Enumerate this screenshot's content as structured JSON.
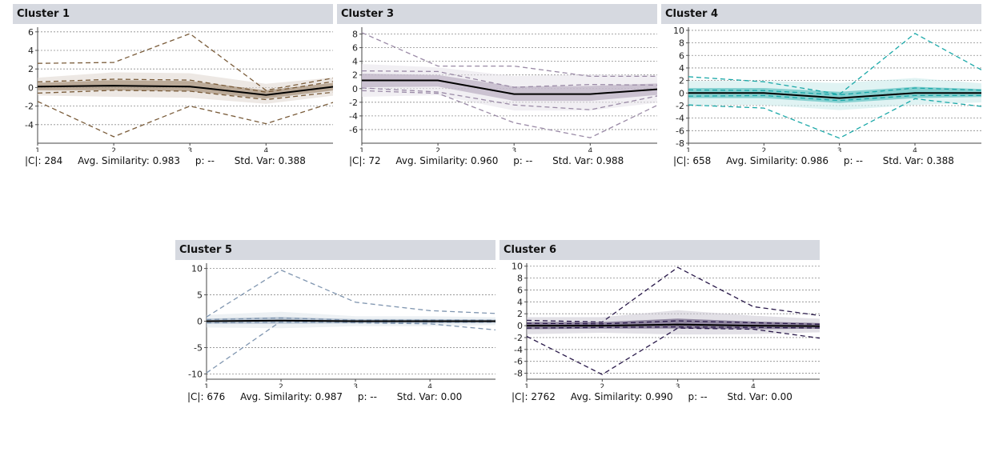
{
  "panels": [
    {
      "title": "Cluster 1",
      "stats": {
        "size": "|C|: 284",
        "similarity": "Avg. Similarity: 0.983",
        "p": "p: --",
        "std": "Std. Var: 0.388"
      },
      "chart_data": {
        "type": "line",
        "x": [
          1,
          2,
          3,
          4,
          5
        ],
        "x_ticks": [
          "1",
          "2",
          "3",
          "4"
        ],
        "y_ticks": [
          "6",
          "4",
          "2",
          "0",
          "-2",
          "-4"
        ],
        "ylim": [
          -6,
          6.5
        ],
        "color": "#7a5c3a",
        "mean": [
          0.1,
          0.2,
          0.1,
          -0.8,
          0.2
        ],
        "band": {
          "upper": [
            0.5,
            0.8,
            0.7,
            -0.3,
            0.6
          ],
          "lower": [
            -0.3,
            -0.3,
            -0.4,
            -1.2,
            -0.2
          ]
        },
        "dashed": [
          [
            2.6,
            2.7,
            5.8,
            -0.3,
            1.2
          ],
          [
            -1.5,
            -5.3,
            -2.0,
            -3.9,
            -1.3
          ],
          [
            0.6,
            0.9,
            0.8,
            -0.5,
            0.8
          ],
          [
            -0.6,
            -0.3,
            -0.4,
            -1.3,
            -0.4
          ]
        ],
        "grid": true
      }
    },
    {
      "title": "Cluster 3",
      "stats": {
        "size": "|C|: 72",
        "similarity": "Avg. Similarity: 0.960",
        "p": "p: --",
        "std": "Std. Var: 0.988"
      },
      "chart_data": {
        "type": "line",
        "x": [
          1,
          2,
          3,
          4,
          5
        ],
        "x_ticks": [
          "1",
          "2",
          "3",
          "4"
        ],
        "y_ticks": [
          "8",
          "6",
          "4",
          "2",
          "0",
          "-2",
          "-4",
          "-6"
        ],
        "ylim": [
          -8,
          9
        ],
        "color": "#9a8aa6",
        "mean": [
          1.2,
          1.2,
          -0.8,
          -0.8,
          0.0
        ],
        "band": {
          "upper": [
            2.2,
            2.0,
            0.3,
            0.4,
            0.8
          ],
          "lower": [
            0.2,
            0.3,
            -1.8,
            -1.8,
            -0.8
          ]
        },
        "dashed": [
          [
            8.2,
            3.3,
            3.3,
            1.8,
            1.8
          ],
          [
            -0.3,
            -0.7,
            -5.0,
            -7.2,
            -1.8
          ],
          [
            2.6,
            2.5,
            0.2,
            0.6,
            0.5
          ],
          [
            0.1,
            -0.5,
            -2.4,
            -3.1,
            -0.8
          ]
        ],
        "grid": true
      }
    },
    {
      "title": "Cluster 4",
      "stats": {
        "size": "|C|: 658",
        "similarity": "Avg. Similarity: 0.986",
        "p": "p: --",
        "std": "Std. Var: 0.388"
      },
      "chart_data": {
        "type": "line",
        "x": [
          1,
          2,
          3,
          4,
          5
        ],
        "x_ticks": [
          "1",
          "2",
          "3",
          "4"
        ],
        "y_ticks": [
          "10",
          "8",
          "6",
          "4",
          "2",
          "0",
          "-2",
          "-4",
          "-6",
          "-8"
        ],
        "ylim": [
          -8,
          10.5
        ],
        "color": "#1aa8a8",
        "mean": [
          0.0,
          0.0,
          -0.8,
          0.0,
          0.0
        ],
        "band": {
          "upper": [
            0.8,
            0.8,
            0.2,
            1.0,
            0.6
          ],
          "lower": [
            -0.8,
            -0.8,
            -1.6,
            -0.8,
            -0.6
          ]
        },
        "dashed": [
          [
            2.6,
            1.8,
            -0.2,
            9.5,
            2.9
          ],
          [
            -1.9,
            -2.4,
            -7.2,
            -0.9,
            -2.3
          ],
          [
            0.5,
            0.4,
            -0.3,
            0.8,
            0.4
          ],
          [
            -0.5,
            -0.4,
            -1.2,
            -0.4,
            -0.4
          ]
        ],
        "grid": true
      }
    },
    {
      "title": "Cluster 5",
      "stats": {
        "size": "|C|: 676",
        "similarity": "Avg. Similarity: 0.987",
        "p": "p: --",
        "std": "Std. Var: 0.00"
      },
      "chart_data": {
        "type": "line",
        "x": [
          1,
          2,
          3,
          4,
          5
        ],
        "x_ticks": [
          "1",
          "2",
          "3",
          "4"
        ],
        "y_ticks": [
          "10",
          "5",
          "0",
          "-5",
          "-10"
        ],
        "ylim": [
          -11,
          11
        ],
        "color": "#8096b0",
        "mean": [
          0.0,
          0.1,
          0.0,
          0.0,
          0.0
        ],
        "band": {
          "upper": [
            0.5,
            0.8,
            0.4,
            0.4,
            0.3
          ],
          "lower": [
            -0.5,
            -0.5,
            -0.4,
            -0.4,
            -0.3
          ]
        },
        "dashed": [
          [
            0.8,
            9.7,
            3.6,
            2.0,
            1.4
          ],
          [
            -9.8,
            0.0,
            -0.3,
            -0.5,
            -1.8
          ],
          [
            0.3,
            0.6,
            0.2,
            0.2,
            0.2
          ],
          [
            -0.3,
            -0.2,
            -0.2,
            -0.2,
            -0.2
          ]
        ],
        "grid": true
      }
    },
    {
      "title": "Cluster 6",
      "stats": {
        "size": "|C|: 2762",
        "similarity": "Avg. Similarity: 0.990",
        "p": "p: --",
        "std": "Std. Var: 0.00"
      },
      "chart_data": {
        "type": "line",
        "x": [
          1,
          2,
          3,
          4,
          5
        ],
        "x_ticks": [
          "1",
          "2",
          "3",
          "4"
        ],
        "y_ticks": [
          "10",
          "8",
          "6",
          "4",
          "2",
          "0",
          "-2",
          "-4",
          "-6",
          "-8"
        ],
        "ylim": [
          -9,
          10.5
        ],
        "color": "#2a1a4a",
        "mean": [
          0.0,
          0.0,
          0.2,
          0.0,
          -0.1
        ],
        "band": {
          "upper": [
            0.6,
            0.6,
            1.2,
            0.7,
            0.4
          ],
          "lower": [
            -0.6,
            -0.5,
            -0.5,
            -0.6,
            -0.5
          ]
        },
        "dashed": [
          [
            0.9,
            0.6,
            9.8,
            3.2,
            1.5
          ],
          [
            -1.8,
            -8.2,
            -0.4,
            -0.6,
            -2.3
          ],
          [
            0.4,
            0.3,
            0.8,
            0.5,
            0.2
          ],
          [
            -0.4,
            -0.3,
            -0.2,
            -0.3,
            -0.4
          ]
        ],
        "grid": true
      }
    }
  ]
}
